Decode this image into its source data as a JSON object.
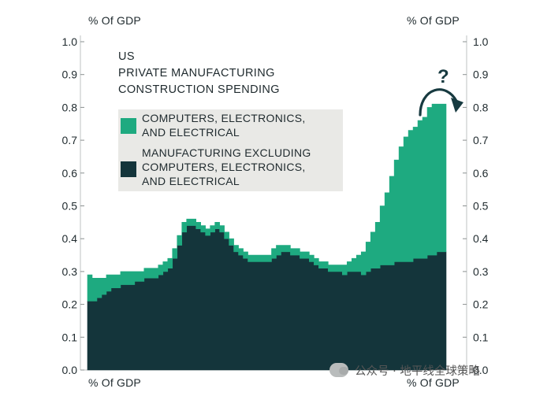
{
  "chart_data": {
    "type": "area",
    "title_lines": [
      "US",
      "PRIVATE MANUFACTURING",
      "CONSTRUCTION SPENDING"
    ],
    "units": {
      "top_left": "% Of GDP",
      "top_right": "% Of GDP",
      "bottom_left": "% Of GDP",
      "bottom_right": "% Of GDP"
    },
    "ylim": [
      0,
      1.0
    ],
    "yticks": [
      "0.0",
      "0.1",
      "0.2",
      "0.3",
      "0.4",
      "0.5",
      "0.6",
      "0.7",
      "0.8",
      "0.9",
      "1.0"
    ],
    "stacked": true,
    "n_points": 76,
    "series": [
      {
        "name": "MANUFACTURING EXCLUDING COMPUTERS, ELECTRONICS, AND ELECTRICAL",
        "color": "#14353b",
        "values": [
          0.21,
          0.21,
          0.22,
          0.23,
          0.24,
          0.25,
          0.25,
          0.26,
          0.26,
          0.26,
          0.27,
          0.27,
          0.28,
          0.28,
          0.28,
          0.29,
          0.3,
          0.31,
          0.34,
          0.38,
          0.42,
          0.44,
          0.44,
          0.43,
          0.42,
          0.41,
          0.42,
          0.43,
          0.42,
          0.4,
          0.38,
          0.36,
          0.35,
          0.34,
          0.33,
          0.33,
          0.33,
          0.33,
          0.33,
          0.34,
          0.35,
          0.36,
          0.36,
          0.35,
          0.35,
          0.34,
          0.34,
          0.33,
          0.32,
          0.31,
          0.31,
          0.3,
          0.3,
          0.3,
          0.29,
          0.3,
          0.3,
          0.3,
          0.29,
          0.3,
          0.31,
          0.31,
          0.32,
          0.32,
          0.32,
          0.33,
          0.33,
          0.33,
          0.33,
          0.34,
          0.34,
          0.34,
          0.35,
          0.35,
          0.36,
          0.36
        ]
      },
      {
        "name": "COMPUTERS, ELECTRONICS, AND ELECTRICAL",
        "color": "#1eaa80",
        "values": [
          0.08,
          0.07,
          0.06,
          0.05,
          0.05,
          0.04,
          0.04,
          0.04,
          0.04,
          0.04,
          0.03,
          0.03,
          0.03,
          0.03,
          0.03,
          0.03,
          0.03,
          0.03,
          0.03,
          0.03,
          0.03,
          0.02,
          0.02,
          0.02,
          0.02,
          0.02,
          0.02,
          0.02,
          0.02,
          0.02,
          0.02,
          0.02,
          0.02,
          0.02,
          0.02,
          0.02,
          0.02,
          0.02,
          0.02,
          0.03,
          0.03,
          0.02,
          0.02,
          0.02,
          0.02,
          0.02,
          0.02,
          0.02,
          0.02,
          0.02,
          0.02,
          0.02,
          0.02,
          0.02,
          0.03,
          0.03,
          0.04,
          0.05,
          0.07,
          0.09,
          0.11,
          0.14,
          0.18,
          0.22,
          0.27,
          0.31,
          0.35,
          0.38,
          0.4,
          0.4,
          0.42,
          0.43,
          0.45,
          0.46,
          0.45,
          0.45
        ]
      }
    ],
    "annotation": "?",
    "grid": false,
    "legend_position": "top-left"
  },
  "watermark": {
    "text": "公众号 · 地平线全球策略",
    "icon": "wechat-icon"
  }
}
